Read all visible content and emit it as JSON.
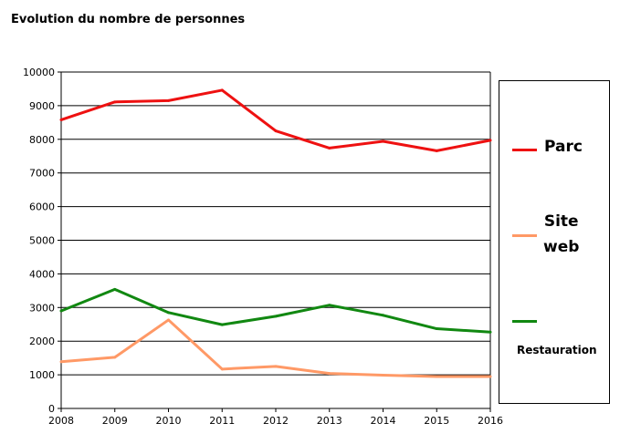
{
  "chart_data": {
    "type": "line",
    "title": "Evolution du nombre de personnes",
    "xlabel": "",
    "ylabel": "",
    "x": [
      "2008",
      "2009",
      "2010",
      "2011",
      "2012",
      "2013",
      "2014",
      "2015",
      "2016"
    ],
    "ylim": [
      0,
      10000
    ],
    "yticks": [
      "0",
      "1000",
      "2000",
      "3000",
      "4000",
      "5000",
      "6000",
      "7000",
      "8000",
      "9000",
      "10000"
    ],
    "grid": true,
    "legend_position": "right",
    "series": [
      {
        "name": "Parc",
        "color": "#ee1111",
        "values": [
          8580,
          9110,
          9150,
          9460,
          8250,
          7740,
          7940,
          7660,
          7970
        ]
      },
      {
        "name": "Site web",
        "color": "#ff9966",
        "values": [
          1390,
          1520,
          2630,
          1170,
          1250,
          1040,
          990,
          950,
          950
        ]
      },
      {
        "name": "Restauration",
        "color": "#118811",
        "values": [
          2900,
          3540,
          2850,
          2490,
          2740,
          3070,
          2770,
          2370,
          2270
        ]
      }
    ]
  },
  "legend": {
    "items": [
      {
        "label": "Parc"
      },
      {
        "label_line1": "Site",
        "label_line2": "web"
      },
      {
        "label": "Restauration"
      }
    ]
  }
}
